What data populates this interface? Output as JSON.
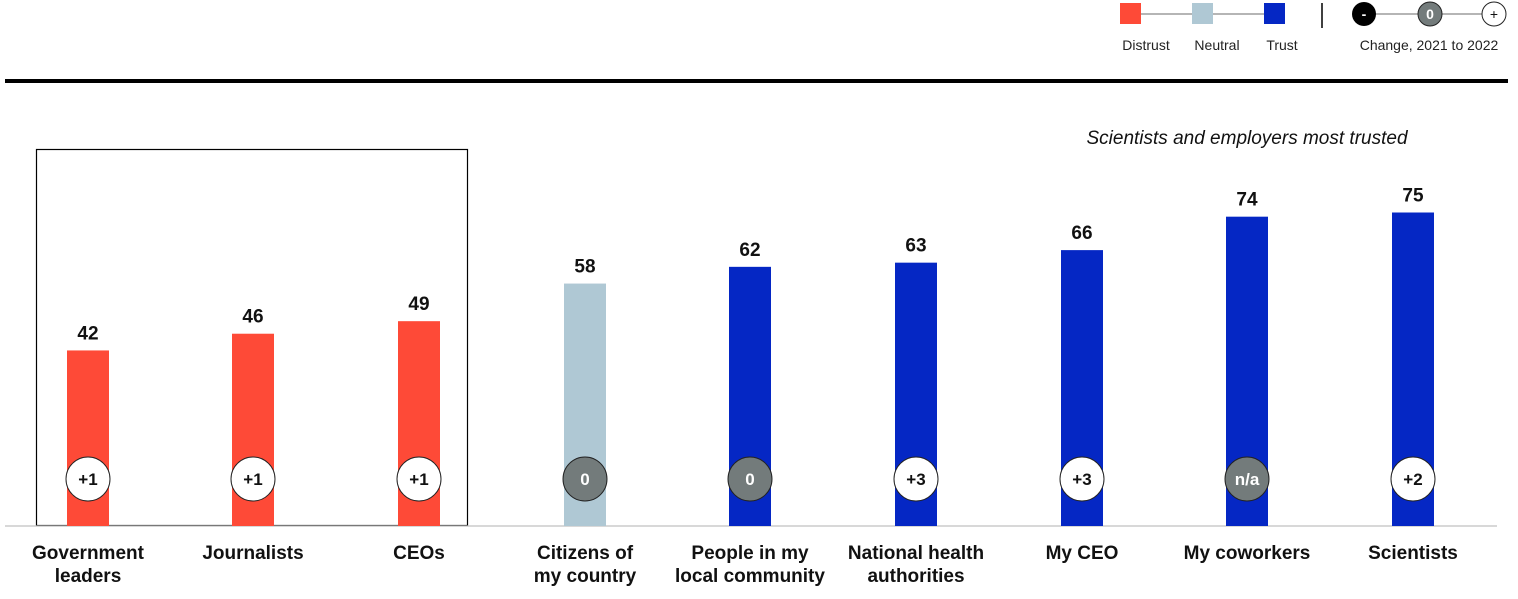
{
  "chart_data": {
    "type": "bar",
    "title": "",
    "annotation": "Scientists and employers most trusted",
    "xlabel": "",
    "ylabel": "",
    "ylim": [
      0,
      100
    ],
    "grid": false,
    "categories": [
      "Government leaders",
      "Journalists",
      "CEOs",
      "Citizens of my country",
      "People in my local community",
      "National health authorities",
      "My CEO",
      "My coworkers",
      "Scientists"
    ],
    "category_lines": [
      [
        "Government",
        "leaders"
      ],
      [
        "Journalists"
      ],
      [
        "CEOs"
      ],
      [
        "Citizens of",
        "my country"
      ],
      [
        "People in my",
        "local community"
      ],
      [
        "National health",
        "authorities"
      ],
      [
        "My CEO"
      ],
      [
        "My coworkers"
      ],
      [
        "Scientists"
      ]
    ],
    "values": [
      42,
      46,
      49,
      58,
      62,
      63,
      66,
      74,
      75
    ],
    "trust_level": [
      "Distrust",
      "Distrust",
      "Distrust",
      "Neutral",
      "Trust",
      "Trust",
      "Trust",
      "Trust",
      "Trust"
    ],
    "change_2021_to_2022": [
      "+1",
      "+1",
      "+1",
      "0",
      "0",
      "+3",
      "+3",
      "n/a",
      "+2"
    ],
    "change_type": [
      "positive",
      "positive",
      "positive",
      "neutral",
      "neutral",
      "positive",
      "positive",
      "neutral",
      "positive"
    ],
    "highlighted_group": [
      "Government leaders",
      "Journalists",
      "CEOs"
    ],
    "colors": {
      "Distrust": "#fe4a37",
      "Neutral": "#afc8d4",
      "Trust": "#0527c4",
      "change_negative": "#000000",
      "change_neutral": "#737b7b",
      "change_positive": "#ffffff"
    },
    "legend": {
      "placement": "top-right",
      "trust_entries": [
        "Distrust",
        "Neutral",
        "Trust"
      ],
      "change_entries": [
        "-",
        "0",
        "+"
      ],
      "change_title": "Change, 2021 to 2022"
    }
  }
}
